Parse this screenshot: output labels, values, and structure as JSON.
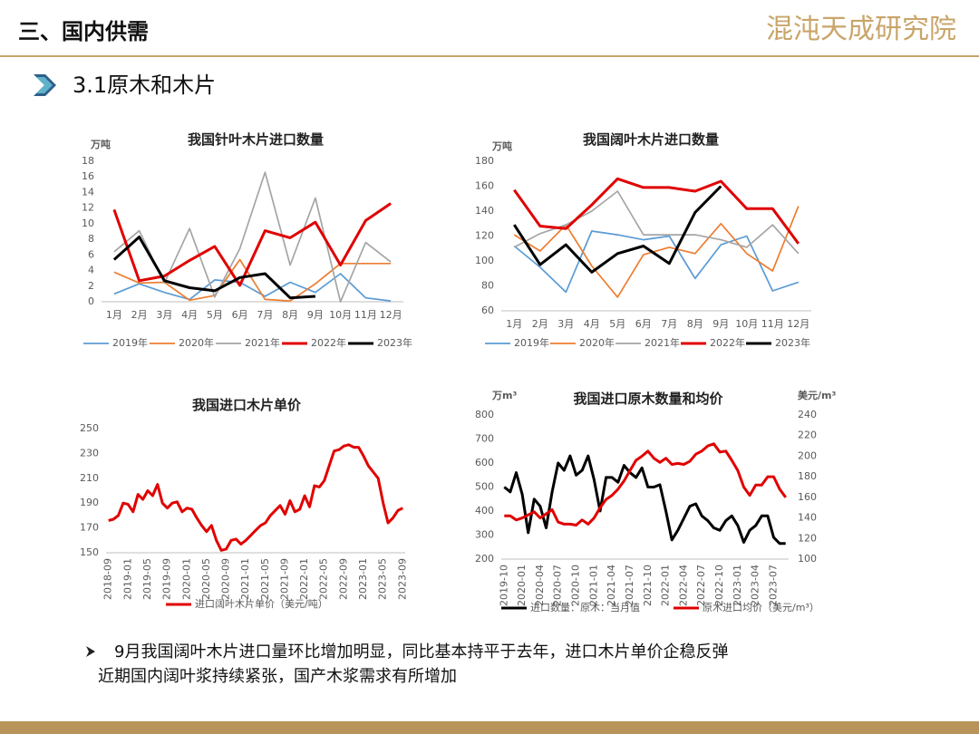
{
  "header": {
    "title": "三、国内供需",
    "logo": "混沌天成研究院",
    "section": "3.1原木和木片"
  },
  "bullets": [
    "9月我国阔叶木片进口量环比增加明显，同比基本持平于去年，进口木片单价企稳反弹",
    "近期国内阔叶浆持续紧张，国产木浆需求有所增加"
  ],
  "chart_data": [
    {
      "type": "line",
      "title": "我国针叶木片进口数量",
      "y_label": "万吨",
      "categories": [
        "1月",
        "2月",
        "3月",
        "4月",
        "5月",
        "6月",
        "7月",
        "8月",
        "9月",
        "10月",
        "11月",
        "12月"
      ],
      "ylim": [
        0,
        18
      ],
      "yticks": [
        0,
        2,
        4,
        6,
        8,
        10,
        12,
        14,
        16,
        18
      ],
      "grid": false,
      "series": [
        {
          "name": "2019年",
          "color": "#5b9bd5",
          "values": [
            1,
            2.3,
            1.2,
            0.3,
            2.8,
            2.5,
            0.7,
            2.5,
            1.2,
            3.6,
            0.5,
            0.1
          ]
        },
        {
          "name": "2020年",
          "color": "#ed7d31",
          "values": [
            3.8,
            2.4,
            2.5,
            0.2,
            0.8,
            5.4,
            0.3,
            0.1,
            2.3,
            4.9,
            4.9,
            4.9
          ]
        },
        {
          "name": "2021年",
          "color": "#a5a5a5",
          "values": [
            6.4,
            9.1,
            2.4,
            9.4,
            0.6,
            6.8,
            16.6,
            4.7,
            13.3,
            0,
            7.6,
            5.1
          ]
        },
        {
          "name": "2022年",
          "color": "#e00000",
          "values": [
            11.8,
            2.7,
            3.3,
            5.3,
            7.1,
            2.1,
            9.1,
            8.2,
            10.2,
            4.7,
            10.4,
            12.6
          ]
        },
        {
          "name": "2023年",
          "color": "#000000",
          "values": [
            5.4,
            8.3,
            2.7,
            1.8,
            1.4,
            3.1,
            3.6,
            0.5,
            0.7,
            null,
            null,
            null
          ]
        }
      ]
    },
    {
      "type": "line",
      "title": "我国阔叶木片进口数量",
      "y_label": "万吨",
      "categories": [
        "1月",
        "2月",
        "3月",
        "4月",
        "5月",
        "6月",
        "7月",
        "8月",
        "9月",
        "10月",
        "11月",
        "12月"
      ],
      "ylim": [
        60,
        180
      ],
      "yticks": [
        60,
        80,
        100,
        120,
        140,
        160,
        180
      ],
      "grid": false,
      "series": [
        {
          "name": "2019年",
          "color": "#5b9bd5",
          "values": [
            112,
            95,
            75,
            124,
            121,
            117,
            120,
            86,
            113,
            120,
            76,
            83
          ]
        },
        {
          "name": "2020年",
          "color": "#ed7d31",
          "values": [
            121,
            108,
            129,
            96,
            71,
            105,
            111,
            106,
            130,
            106,
            92,
            144
          ]
        },
        {
          "name": "2021年",
          "color": "#a5a5a5",
          "values": [
            111,
            122,
            129,
            140,
            156,
            121,
            121,
            121,
            117,
            111,
            129,
            106
          ]
        },
        {
          "name": "2022年",
          "color": "#e00000",
          "values": [
            157,
            128,
            126,
            145,
            166,
            159,
            159,
            156,
            164,
            142,
            142,
            114
          ]
        },
        {
          "name": "2023年",
          "color": "#000000",
          "values": [
            129,
            97,
            113,
            91,
            106,
            112,
            98,
            139,
            160,
            null,
            null,
            null
          ]
        }
      ]
    },
    {
      "type": "line",
      "title": "我国进口木片单价",
      "categories": [
        "2018-09",
        null,
        null,
        null,
        "2019-01",
        null,
        null,
        null,
        "2019-05",
        null,
        null,
        null,
        "2019-09",
        null,
        null,
        null,
        "2020-01",
        null,
        null,
        null,
        "2020-05",
        null,
        null,
        null,
        "2020-09",
        null,
        null,
        null,
        "2021-01",
        null,
        null,
        null,
        "2021-05",
        null,
        null,
        null,
        "2021-09",
        null,
        null,
        null,
        "2022-01",
        null,
        null,
        null,
        "2022-05",
        null,
        null,
        null,
        "2022-09",
        null,
        null,
        null,
        "2023-01",
        null,
        null,
        null,
        "2023-05",
        null,
        null,
        null,
        "2023-09"
      ],
      "ylim": [
        150,
        250
      ],
      "yticks": [
        150,
        170,
        190,
        210,
        230,
        250
      ],
      "grid": false,
      "series": [
        {
          "name": "进口阔叶木片单价（美元/吨）",
          "color": "#e00000",
          "values": [
            176,
            177,
            180,
            190,
            189,
            183,
            197,
            193,
            200,
            196,
            205,
            190,
            186,
            190,
            191,
            183,
            186,
            185,
            178,
            172,
            167,
            172,
            160,
            152,
            153,
            160,
            161,
            157,
            160,
            164,
            168,
            172,
            174,
            180,
            184,
            188,
            181,
            192,
            183,
            185,
            196,
            187,
            204,
            203,
            208,
            220,
            232,
            233,
            236,
            237,
            235,
            235,
            228,
            220,
            215,
            210,
            190,
            174,
            178,
            184,
            186
          ]
        }
      ]
    },
    {
      "type": "line",
      "title": "我国进口原木数量和均价",
      "y_label": "万m³",
      "y2_label": "美元/m³",
      "categories": [
        "2019-10",
        null,
        null,
        "2020-01",
        null,
        null,
        "2020-04",
        null,
        null,
        "2020-07",
        null,
        null,
        "2020-10",
        null,
        null,
        "2021-01",
        null,
        null,
        "2021-04",
        null,
        null,
        "2021-07",
        null,
        null,
        "2021-10",
        null,
        null,
        "2022-01",
        null,
        null,
        "2022-04",
        null,
        null,
        "2022-07",
        null,
        null,
        "2022-10",
        null,
        null,
        "2023-01",
        null,
        null,
        "2023-04",
        null,
        null,
        "2023-07",
        null,
        null
      ],
      "ylim": [
        200,
        800
      ],
      "yticks": [
        200,
        300,
        400,
        500,
        600,
        700,
        800
      ],
      "y2lim": [
        100,
        240
      ],
      "y2ticks": [
        100,
        120,
        140,
        160,
        180,
        200,
        220,
        240
      ],
      "grid": false,
      "series": [
        {
          "name": "进口数量：原木：当月值",
          "color": "#000000",
          "values": [
            500,
            480,
            560,
            470,
            310,
            450,
            420,
            330,
            480,
            600,
            570,
            630,
            550,
            570,
            630,
            530,
            400,
            540,
            540,
            520,
            590,
            560,
            540,
            580,
            500,
            500,
            510,
            400,
            280,
            320,
            370,
            420,
            430,
            380,
            360,
            330,
            320,
            360,
            380,
            340,
            270,
            320,
            340,
            380,
            380,
            290,
            265,
            265
          ]
        },
        {
          "name": "原木进口均价（美元/m³）",
          "color": "#e00000",
          "axis": "y2",
          "values": [
            142,
            142,
            138,
            140,
            143,
            146,
            140,
            144,
            148,
            136,
            134,
            134,
            133,
            138,
            134,
            140,
            150,
            158,
            162,
            168,
            176,
            186,
            196,
            200,
            205,
            198,
            194,
            198,
            192,
            193,
            192,
            195,
            202,
            205,
            210,
            212,
            204,
            205,
            196,
            186,
            170,
            162,
            172,
            172,
            180,
            180,
            168,
            160
          ]
        }
      ]
    }
  ]
}
